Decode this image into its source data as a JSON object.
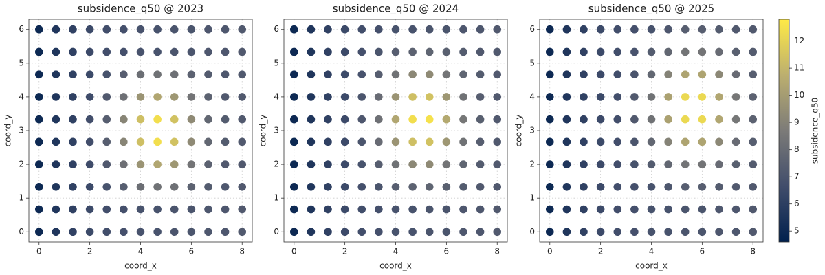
{
  "chart_data": [
    {
      "type": "scatter",
      "title": "subsidence_q50 @ 2023",
      "x_label": "coord_x",
      "y_label": "coord_y",
      "x": [
        0,
        0.667,
        1.333,
        2,
        2.667,
        3.333,
        4,
        4.667,
        5.333,
        6,
        6.667,
        7.333,
        8
      ],
      "y": [
        0,
        0.667,
        1.333,
        2,
        2.667,
        3.333,
        4,
        4.667,
        5.333,
        6
      ],
      "values": [
        [
          5.0,
          5.6,
          6.1,
          6.5,
          6.7,
          6.8,
          6.9,
          6.9,
          7.0,
          7.0,
          7.1,
          7.1,
          7.2
        ],
        [
          5.0,
          5.6,
          6.1,
          6.5,
          6.7,
          6.8,
          6.9,
          6.9,
          7.0,
          7.0,
          7.1,
          7.1,
          7.2
        ],
        [
          5.0,
          5.6,
          6.1,
          6.5,
          6.9,
          7.4,
          8.1,
          8.3,
          8.2,
          7.6,
          7.3,
          7.1,
          7.2
        ],
        [
          5.0,
          5.6,
          6.1,
          6.6,
          7.2,
          8.2,
          9.7,
          10.4,
          9.8,
          8.4,
          7.6,
          7.2,
          7.2
        ],
        [
          5.0,
          5.6,
          6.1,
          6.7,
          7.4,
          9.1,
          11.3,
          12.4,
          11.4,
          9.3,
          7.8,
          7.3,
          7.2
        ],
        [
          5.0,
          5.6,
          6.1,
          6.7,
          7.4,
          9.1,
          11.3,
          12.4,
          11.4,
          9.3,
          7.8,
          7.3,
          7.2
        ],
        [
          5.0,
          5.6,
          6.1,
          6.6,
          7.2,
          8.2,
          9.7,
          10.4,
          9.8,
          8.4,
          7.6,
          7.2,
          7.2
        ],
        [
          5.0,
          5.6,
          6.1,
          6.5,
          6.9,
          7.4,
          8.1,
          8.3,
          8.2,
          7.6,
          7.3,
          7.1,
          7.2
        ],
        [
          5.0,
          5.6,
          6.1,
          6.5,
          6.7,
          6.8,
          6.9,
          6.9,
          7.0,
          7.0,
          7.1,
          7.1,
          7.2
        ],
        [
          5.0,
          5.6,
          6.1,
          6.5,
          6.7,
          6.8,
          6.9,
          6.9,
          7.0,
          7.0,
          7.1,
          7.1,
          7.2
        ]
      ],
      "xlim": [
        -0.4,
        8.4
      ],
      "ylim": [
        -0.3,
        6.3
      ],
      "xticks": [
        0,
        2,
        4,
        6,
        8
      ],
      "yticks": [
        0,
        1,
        2,
        3,
        4,
        5,
        6
      ],
      "grid": true
    },
    {
      "type": "scatter",
      "title": "subsidence_q50 @ 2024",
      "x_label": "coord_x",
      "y_label": "coord_y",
      "x": [
        0,
        0.667,
        1.333,
        2,
        2.667,
        3.333,
        4,
        4.667,
        5.333,
        6,
        6.667,
        7.333,
        8
      ],
      "y": [
        0,
        0.667,
        1.333,
        2,
        2.667,
        3.333,
        4,
        4.667,
        5.333,
        6
      ],
      "values": [
        [
          5.0,
          5.6,
          6.1,
          6.5,
          6.7,
          6.8,
          6.9,
          6.9,
          7.0,
          7.0,
          7.1,
          7.1,
          7.2
        ],
        [
          5.0,
          5.6,
          6.1,
          6.5,
          6.7,
          6.8,
          6.9,
          6.9,
          7.0,
          7.0,
          7.1,
          7.1,
          7.2
        ],
        [
          5.0,
          5.6,
          6.1,
          6.5,
          6.8,
          7.0,
          7.4,
          7.6,
          7.7,
          7.5,
          7.3,
          7.2,
          7.2
        ],
        [
          5.0,
          5.6,
          6.1,
          6.5,
          6.9,
          7.4,
          8.3,
          9.2,
          9.3,
          8.4,
          7.7,
          7.3,
          7.2
        ],
        [
          5.0,
          5.6,
          6.1,
          6.5,
          7.0,
          8.0,
          9.7,
          11.3,
          11.4,
          9.8,
          8.3,
          7.4,
          7.2
        ],
        [
          5.0,
          5.6,
          6.1,
          6.5,
          7.1,
          8.2,
          10.4,
          12.4,
          12.5,
          10.5,
          8.5,
          7.5,
          7.2
        ],
        [
          5.0,
          5.6,
          6.1,
          6.5,
          7.0,
          8.0,
          9.7,
          11.3,
          11.4,
          9.8,
          8.3,
          7.4,
          7.2
        ],
        [
          5.0,
          5.6,
          6.1,
          6.5,
          6.9,
          7.4,
          8.3,
          9.2,
          9.3,
          8.4,
          7.7,
          7.3,
          7.2
        ],
        [
          5.0,
          5.6,
          6.1,
          6.5,
          6.8,
          7.0,
          7.4,
          7.6,
          7.7,
          7.5,
          7.3,
          7.2,
          7.2
        ],
        [
          5.0,
          5.6,
          6.1,
          6.5,
          6.7,
          6.8,
          6.9,
          6.9,
          7.0,
          7.0,
          7.1,
          7.1,
          7.2
        ]
      ],
      "xlim": [
        -0.4,
        8.4
      ],
      "ylim": [
        -0.3,
        6.3
      ],
      "xticks": [
        0,
        2,
        4,
        6,
        8
      ],
      "yticks": [
        0,
        1,
        2,
        3,
        4,
        5,
        6
      ],
      "grid": true
    },
    {
      "type": "scatter",
      "title": "subsidence_q50 @ 2025",
      "x_label": "coord_x",
      "y_label": "coord_y",
      "x": [
        0,
        0.667,
        1.333,
        2,
        2.667,
        3.333,
        4,
        4.667,
        5.333,
        6,
        6.667,
        7.333,
        8
      ],
      "y": [
        0,
        0.667,
        1.333,
        2,
        2.667,
        3.333,
        4,
        4.667,
        5.333,
        6
      ],
      "values": [
        [
          5.0,
          5.6,
          6.1,
          6.5,
          6.7,
          6.8,
          6.9,
          6.9,
          7.0,
          7.0,
          7.1,
          7.1,
          7.2
        ],
        [
          5.0,
          5.6,
          6.1,
          6.5,
          6.7,
          6.8,
          6.9,
          6.9,
          7.0,
          7.0,
          7.1,
          7.1,
          7.2
        ],
        [
          5.0,
          5.6,
          6.1,
          6.5,
          6.7,
          6.8,
          6.9,
          7.1,
          7.4,
          7.4,
          7.3,
          7.2,
          7.2
        ],
        [
          5.0,
          5.6,
          6.1,
          6.5,
          6.7,
          6.9,
          7.3,
          7.8,
          8.4,
          8.4,
          8.0,
          7.5,
          7.3
        ],
        [
          5.0,
          5.6,
          6.1,
          6.5,
          6.7,
          7.0,
          7.8,
          9.0,
          10.3,
          10.3,
          9.2,
          8.0,
          7.4
        ],
        [
          5.0,
          5.6,
          6.1,
          6.5,
          6.7,
          7.2,
          8.3,
          10.2,
          12.2,
          12.2,
          10.4,
          8.5,
          7.6
        ],
        [
          5.0,
          5.6,
          6.1,
          6.5,
          6.7,
          7.2,
          8.3,
          10.2,
          12.2,
          12.2,
          10.4,
          8.5,
          7.6
        ],
        [
          5.0,
          5.6,
          6.1,
          6.5,
          6.7,
          7.0,
          7.8,
          9.0,
          10.3,
          10.3,
          9.2,
          8.0,
          7.4
        ],
        [
          5.0,
          5.6,
          6.1,
          6.5,
          6.7,
          6.9,
          7.3,
          7.8,
          8.4,
          8.4,
          8.0,
          7.5,
          7.3
        ],
        [
          5.0,
          5.6,
          6.1,
          6.5,
          6.7,
          6.8,
          6.9,
          7.1,
          7.4,
          7.4,
          7.3,
          7.2,
          7.2
        ]
      ],
      "xlim": [
        -0.4,
        8.4
      ],
      "ylim": [
        -0.3,
        6.3
      ],
      "xticks": [
        0,
        2,
        4,
        6,
        8
      ],
      "yticks": [
        0,
        1,
        2,
        3,
        4,
        5,
        6
      ],
      "grid": true
    }
  ],
  "colorbar": {
    "label": "subsidence_q50",
    "lim": [
      4.6,
      12.8
    ],
    "ticks": [
      5,
      6,
      7,
      8,
      9,
      10,
      11,
      12
    ],
    "colormap": [
      "#00204d",
      "#414d6b",
      "#7c7b78",
      "#bcaf6f",
      "#ffea46"
    ]
  }
}
